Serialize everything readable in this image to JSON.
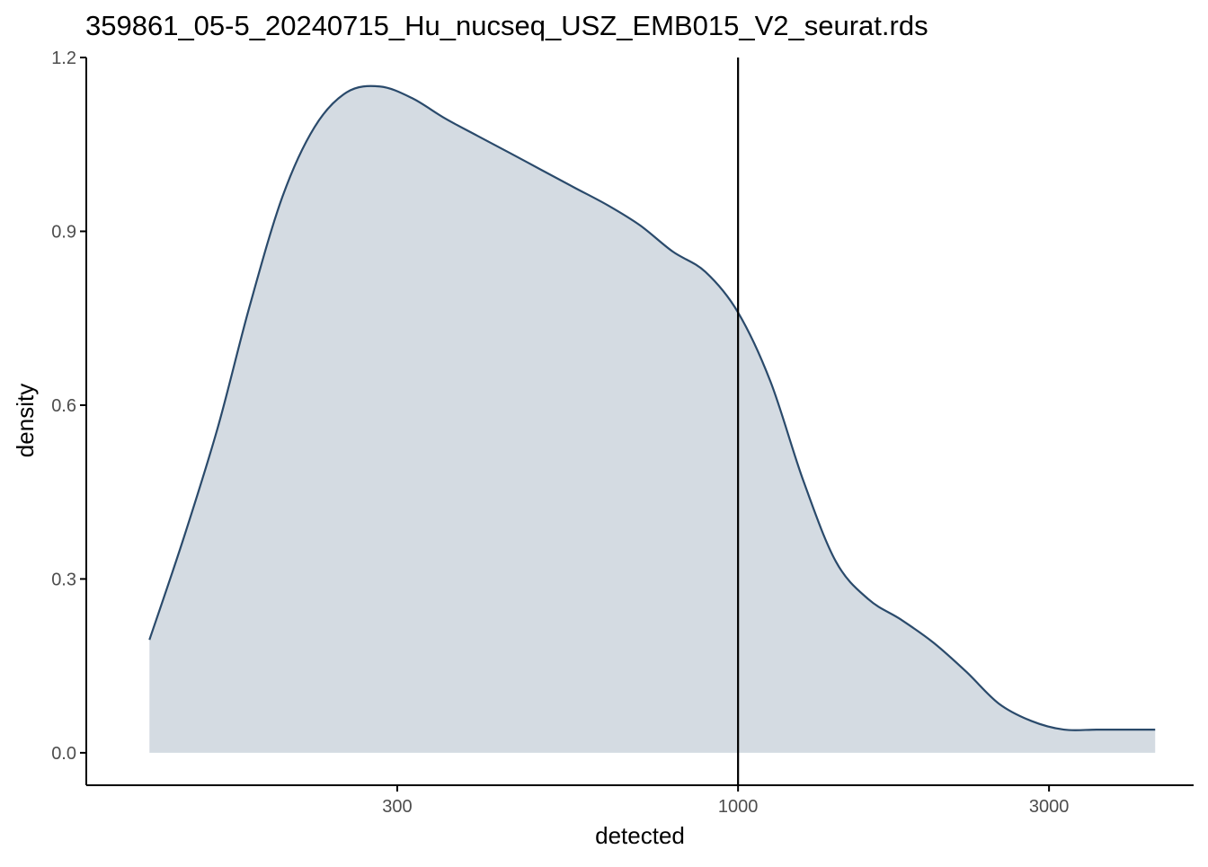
{
  "chart_data": {
    "type": "area",
    "title": "359861_05-5_20240715_Hu_nucseq_USZ_EMB015_V2_seurat.rds",
    "xlabel": "detected",
    "ylabel": "density",
    "x_scale": "log10",
    "xlim": [
      100,
      5000
    ],
    "ylim": [
      -0.056,
      1.2
    ],
    "x_ticks": [
      {
        "value": 300,
        "label": "300"
      },
      {
        "value": 1000,
        "label": "1000"
      },
      {
        "value": 3000,
        "label": "3000"
      }
    ],
    "y_ticks": [
      {
        "value": 0.0,
        "label": "0.0"
      },
      {
        "value": 0.3,
        "label": "0.3"
      },
      {
        "value": 0.6,
        "label": "0.6"
      },
      {
        "value": 0.9,
        "label": "0.9"
      },
      {
        "value": 1.2,
        "label": "1.2"
      }
    ],
    "vline": {
      "x": 1000
    },
    "grid": false,
    "legend": "none",
    "fill_color": "#d4dbe2",
    "line_color": "#2a4a6b",
    "vline_color": "#000000",
    "series": [
      {
        "x": [
          125,
          141,
          159,
          178,
          200,
          224,
          251,
          282,
          316,
          355,
          398,
          447,
          501,
          562,
          631,
          708,
          794,
          891,
          1000,
          1122,
          1259,
          1413,
          1585,
          1778,
          1995,
          2239,
          2512,
          2818,
          3162,
          3548,
          3981,
          4365
        ],
        "y": [
          0.195,
          0.37,
          0.56,
          0.77,
          0.96,
          1.08,
          1.14,
          1.15,
          1.13,
          1.095,
          1.065,
          1.035,
          1.005,
          0.975,
          0.945,
          0.91,
          0.865,
          0.83,
          0.76,
          0.64,
          0.47,
          0.33,
          0.265,
          0.23,
          0.19,
          0.14,
          0.085,
          0.055,
          0.04,
          0.04,
          0.04,
          0.04
        ]
      }
    ]
  }
}
